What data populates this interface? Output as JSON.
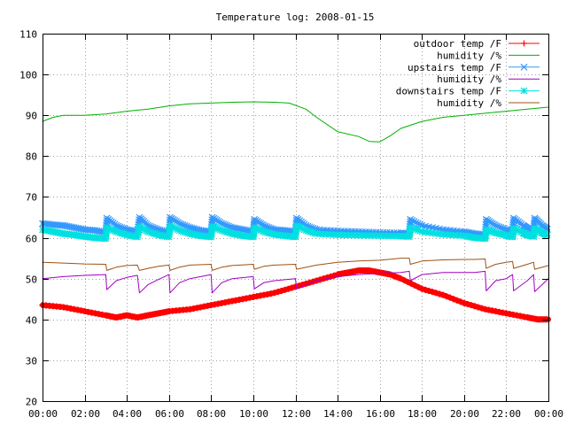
{
  "chart_data": {
    "type": "line",
    "title": "Temperature log: 2008-01-15",
    "xlabel": "",
    "ylabel": "",
    "x_ticks": [
      "00:00",
      "02:00",
      "04:00",
      "06:00",
      "08:00",
      "10:00",
      "12:00",
      "14:00",
      "16:00",
      "18:00",
      "20:00",
      "22:00",
      "00:00"
    ],
    "x_range_hours": [
      0,
      24
    ],
    "ylim": [
      20,
      110
    ],
    "y_ticks": [
      20,
      30,
      40,
      50,
      60,
      70,
      80,
      90,
      100,
      110
    ],
    "grid": true,
    "legend_position": "top-right",
    "series": [
      {
        "name": "outdoor temp /F",
        "color": "#ff0000",
        "marker": "plus",
        "x": [
          0,
          1,
          2,
          3,
          3.5,
          4,
          4.5,
          5,
          5.5,
          6,
          7,
          8,
          9,
          10,
          11,
          12,
          13,
          14,
          14.5,
          15,
          15.5,
          16,
          16.5,
          17,
          18,
          19,
          20,
          21,
          22,
          23,
          23.5,
          24
        ],
        "y": [
          43.5,
          43,
          42,
          41,
          40.5,
          41,
          40.5,
          41,
          41.5,
          42,
          42.5,
          43.5,
          44.5,
          45.5,
          46.5,
          48,
          49.5,
          51,
          51.5,
          52,
          52,
          51.5,
          51,
          50,
          47.5,
          46,
          44,
          42.5,
          41.5,
          40.5,
          40,
          40
        ]
      },
      {
        "name": "humidity /%",
        "color": "#00b000",
        "marker": "none",
        "x": [
          0,
          0.5,
          1,
          2,
          3,
          4,
          5,
          6,
          7,
          8,
          9,
          10,
          11,
          11.7,
          12.5,
          13,
          14,
          15,
          15.5,
          16,
          16.5,
          17,
          18,
          19,
          20,
          21,
          22,
          23,
          24
        ],
        "y": [
          88.5,
          89.5,
          90,
          90,
          90.3,
          91,
          91.5,
          92.3,
          92.8,
          93,
          93.2,
          93.3,
          93.2,
          93,
          91.5,
          89.5,
          86,
          84.8,
          83.6,
          83.5,
          85,
          86.8,
          88.5,
          89.5,
          90,
          90.5,
          91,
          91.5,
          92
        ]
      },
      {
        "name": "upstairs temp /F",
        "color": "#3399ff",
        "marker": "cross",
        "x": [
          0,
          0.5,
          1,
          1.5,
          2,
          2.5,
          3,
          3.05,
          3.5,
          4,
          4.5,
          4.6,
          5,
          5.5,
          6,
          6.05,
          6.5,
          7,
          7.5,
          8,
          8.05,
          8.5,
          9,
          9.5,
          10,
          10.05,
          10.5,
          11,
          11.5,
          12,
          12.05,
          12.5,
          13,
          14,
          15,
          16,
          17,
          17.4,
          17.45,
          18,
          19,
          20,
          20.5,
          21,
          21.05,
          21.5,
          22,
          22.3,
          22.35,
          22.8,
          23,
          23.3,
          23.35,
          23.7,
          24
        ],
        "y": [
          63.5,
          63.2,
          63,
          62.5,
          62,
          61.8,
          61.3,
          64.8,
          63,
          62,
          61.5,
          65,
          63,
          62,
          61.3,
          65,
          63.5,
          62.5,
          61.8,
          61.5,
          65,
          63.5,
          62.5,
          62,
          61.5,
          64.5,
          63,
          62,
          61.8,
          61.5,
          64.8,
          63,
          62,
          61.7,
          61.5,
          61.3,
          61.2,
          61,
          64.5,
          63,
          62,
          61.5,
          61,
          60.8,
          64.5,
          63,
          62,
          61.5,
          64.8,
          63,
          62.3,
          61.8,
          64.8,
          63,
          62
        ]
      },
      {
        "name": "humidity /%",
        "color": "#a000c0",
        "marker": "none",
        "x": [
          0,
          1,
          2,
          3,
          3.05,
          3.5,
          4,
          4.5,
          4.6,
          5,
          5.5,
          6,
          6.05,
          6.5,
          7,
          8,
          8.05,
          8.5,
          9,
          10,
          10.05,
          10.5,
          11,
          12,
          12.05,
          13,
          14,
          15,
          16,
          17,
          17.4,
          17.45,
          18,
          19,
          20,
          20.5,
          21,
          21.05,
          21.5,
          22,
          22.3,
          22.35,
          23,
          23.3,
          23.35,
          24
        ],
        "y": [
          50,
          50.5,
          50.8,
          51,
          47.3,
          49.5,
          50.3,
          50.8,
          46.5,
          48.5,
          49.8,
          51,
          46.5,
          49,
          50,
          51,
          46.5,
          49,
          50,
          50.5,
          47.5,
          49,
          49.5,
          50,
          47.5,
          49.5,
          50.5,
          51,
          51.3,
          51.5,
          51.8,
          49.5,
          51,
          51.5,
          51.5,
          51.5,
          51.8,
          47,
          49.5,
          50,
          51,
          47,
          49.5,
          51,
          46.8,
          50
        ]
      },
      {
        "name": "downstairs temp /F",
        "color": "#00e0e0",
        "marker": "star",
        "x": [
          0,
          0.5,
          1,
          1.5,
          2,
          2.5,
          3,
          3.05,
          3.5,
          4,
          4.5,
          4.6,
          5,
          5.5,
          6,
          6.05,
          6.5,
          7,
          7.5,
          8,
          8.05,
          8.5,
          9,
          9.5,
          10,
          10.05,
          10.5,
          11,
          11.5,
          12,
          12.05,
          12.5,
          13,
          14,
          15,
          16,
          17,
          17.4,
          17.45,
          18,
          19,
          20,
          20.5,
          21,
          21.05,
          21.5,
          22,
          22.3,
          22.35,
          22.8,
          23,
          23.3,
          23.35,
          23.7,
          24
        ],
        "y": [
          62,
          61.5,
          61,
          60.7,
          60.3,
          60,
          59.8,
          62.5,
          61.5,
          60.7,
          60.2,
          62.8,
          61.5,
          60.7,
          60.2,
          63,
          61.8,
          61,
          60.5,
          60.2,
          62.8,
          61.8,
          61,
          60.5,
          60.2,
          62.5,
          61.5,
          60.8,
          60.5,
          60.2,
          63,
          61.8,
          61,
          60.7,
          60.6,
          60.5,
          60.4,
          60.3,
          62.5,
          61.5,
          60.8,
          60.5,
          60,
          59.8,
          62,
          61.2,
          60.6,
          60.2,
          62.3,
          61.2,
          60.7,
          60.3,
          62.3,
          61.2,
          60.5
        ]
      },
      {
        "name": "humidity /%",
        "color": "#a05010",
        "marker": "none",
        "x": [
          0,
          1,
          2,
          3,
          3.05,
          3.5,
          4,
          4.5,
          4.6,
          5,
          5.5,
          6,
          6.05,
          6.5,
          7,
          8,
          8.05,
          8.5,
          9,
          10,
          10.05,
          10.5,
          11,
          12,
          12.05,
          13,
          14,
          15,
          16,
          17,
          17.4,
          17.45,
          18,
          19,
          20,
          20.5,
          21,
          21.05,
          21.5,
          22,
          22.3,
          22.35,
          23,
          23.3,
          23.35,
          24
        ],
        "y": [
          54,
          53.8,
          53.6,
          53.5,
          52,
          52.8,
          53.2,
          53.3,
          52,
          52.5,
          53,
          53.3,
          52,
          52.8,
          53.3,
          53.5,
          52,
          52.8,
          53.2,
          53.5,
          52.3,
          53,
          53.3,
          53.5,
          52.3,
          53.3,
          54,
          54.3,
          54.5,
          55,
          55,
          53.5,
          54.3,
          54.6,
          54.7,
          54.7,
          54.8,
          52.5,
          53.5,
          54,
          54.2,
          52.5,
          53.5,
          54,
          52.3,
          53.2
        ]
      }
    ]
  }
}
